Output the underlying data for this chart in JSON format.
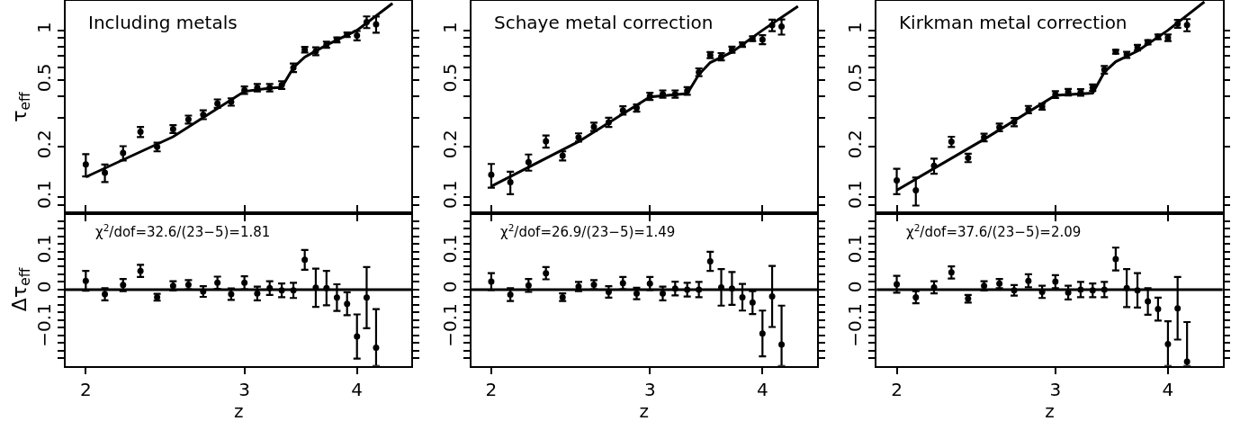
{
  "chart_data": [
    {
      "type": "scatter",
      "ylabel": "τ$_{eff}$",
      "annotations": [
        "Including metals"
      ],
      "log": "xy",
      "marker": "circle",
      "tick_labels": "y",
      "xlim": [
        1.9,
        4.6
      ],
      "xticks": [
        {
          "value": 2,
          "label": null
        },
        {
          "value": 3,
          "label": null
        },
        {
          "value": 4,
          "label": null
        }
      ],
      "ylim": [
        0.08,
        1.5
      ],
      "yticks": [
        {
          "value": 0.09,
          "label": null
        },
        0.1,
        0.2,
        {
          "value": 0.3,
          "label": null
        },
        {
          "value": 0.4,
          "label": null
        },
        0.5,
        {
          "value": 0.6,
          "label": null
        },
        {
          "value": 0.7,
          "label": null
        },
        {
          "value": 0.8,
          "label": null
        },
        {
          "value": 0.9,
          "label": null
        },
        1
      ],
      "x": [
        2.0,
        2.1,
        2.2,
        2.3,
        2.4,
        2.5,
        2.6,
        2.7,
        2.8,
        2.9,
        3.0,
        3.1,
        3.2,
        3.3,
        3.4,
        3.5,
        3.6,
        3.7,
        3.8,
        3.9,
        4.0,
        4.1,
        4.2
      ],
      "series": [
        {
          "color": "#000000",
          "values": [
            0.157,
            0.14,
            0.184,
            0.246,
            0.2,
            0.256,
            0.292,
            0.312,
            0.364,
            0.372,
            0.438,
            0.453,
            0.453,
            0.47,
            0.597,
            0.765,
            0.749,
            0.82,
            0.876,
            0.94,
            0.929,
            1.12,
            1.087
          ],
          "errors": [
            0.024,
            0.017,
            0.018,
            0.017,
            0.012,
            0.014,
            0.016,
            0.019,
            0.021,
            0.019,
            0.022,
            0.023,
            0.023,
            0.025,
            0.035,
            0.03,
            0.04,
            0.035,
            0.03,
            0.03,
            0.06,
            0.09,
            0.12
          ]
        },
        {
          "type": "line",
          "marker": "none",
          "color": "#000000",
          "x": [
            2.0,
            2.5,
            3.0,
            3.2,
            3.3,
            3.4,
            3.5,
            3.7,
            4.0,
            4.38
          ],
          "values": [
            0.132,
            0.23,
            0.43,
            0.45,
            0.455,
            0.597,
            0.69,
            0.815,
            1.0,
            1.45
          ]
        }
      ]
    },
    {
      "type": "scatter",
      "annotations": [
        "Schaye metal correction"
      ],
      "log": "xy",
      "marker": "circle",
      "tick_labels": "y",
      "xlim": [
        1.9,
        4.6
      ],
      "xticks": [
        {
          "value": 2,
          "label": null
        },
        {
          "value": 3,
          "label": null
        },
        {
          "value": 4,
          "label": null
        }
      ],
      "ylim": [
        0.08,
        1.5
      ],
      "yticks": [
        {
          "value": 0.09,
          "label": null
        },
        0.1,
        0.2,
        {
          "value": 0.3,
          "label": null
        },
        {
          "value": 0.4,
          "label": null
        },
        0.5,
        {
          "value": 0.6,
          "label": null
        },
        {
          "value": 0.7,
          "label": null
        },
        {
          "value": 0.8,
          "label": null
        },
        {
          "value": 0.9,
          "label": null
        },
        1
      ],
      "x": [
        2.0,
        2.1,
        2.2,
        2.3,
        2.4,
        2.5,
        2.6,
        2.7,
        2.8,
        2.9,
        3.0,
        3.1,
        3.2,
        3.3,
        3.4,
        3.5,
        3.6,
        3.7,
        3.8,
        3.9,
        4.0,
        4.1,
        4.2
      ],
      "series": [
        {
          "color": "#000000",
          "values": [
            0.136,
            0.123,
            0.162,
            0.216,
            0.177,
            0.228,
            0.264,
            0.281,
            0.331,
            0.342,
            0.402,
            0.415,
            0.415,
            0.433,
            0.561,
            0.71,
            0.695,
            0.765,
            0.82,
            0.891,
            0.879,
            1.072,
            1.051
          ],
          "errors": [
            0.022,
            0.019,
            0.018,
            0.018,
            0.011,
            0.013,
            0.015,
            0.018,
            0.019,
            0.017,
            0.02,
            0.021,
            0.021,
            0.023,
            0.03,
            0.03,
            0.035,
            0.032,
            0.025,
            0.03,
            0.055,
            0.085,
            0.11
          ]
        },
        {
          "type": "line",
          "marker": "none",
          "color": "#000000",
          "x": [
            2.0,
            2.5,
            3.0,
            3.3,
            3.4,
            3.5,
            3.7,
            4.0,
            4.38
          ],
          "values": [
            0.116,
            0.215,
            0.398,
            0.417,
            0.543,
            0.64,
            0.74,
            1.0,
            1.39
          ]
        }
      ]
    },
    {
      "type": "scatter",
      "annotations": [
        "Kirkman metal correction"
      ],
      "log": "xy",
      "marker": "circle",
      "tick_labels": "y",
      "xlim": [
        1.9,
        4.6
      ],
      "xticks": [
        {
          "value": 2,
          "label": null
        },
        {
          "value": 3,
          "label": null
        },
        {
          "value": 4,
          "label": null
        }
      ],
      "ylim": [
        0.08,
        1.5
      ],
      "yticks": [
        {
          "value": 0.09,
          "label": null
        },
        0.1,
        0.2,
        {
          "value": 0.3,
          "label": null
        },
        {
          "value": 0.4,
          "label": null
        },
        0.5,
        {
          "value": 0.6,
          "label": null
        },
        {
          "value": 0.7,
          "label": null
        },
        {
          "value": 0.8,
          "label": null
        },
        {
          "value": 0.9,
          "label": null
        },
        1
      ],
      "x": [
        2.0,
        2.1,
        2.2,
        2.3,
        2.4,
        2.5,
        2.6,
        2.7,
        2.8,
        2.9,
        3.0,
        3.1,
        3.2,
        3.3,
        3.4,
        3.5,
        3.6,
        3.7,
        3.8,
        3.9,
        4.0,
        4.1,
        4.2
      ],
      "series": [
        {
          "color": "#000000",
          "values": [
            0.126,
            0.11,
            0.154,
            0.215,
            0.172,
            0.228,
            0.262,
            0.282,
            0.335,
            0.349,
            0.412,
            0.426,
            0.424,
            0.453,
            0.58,
            0.743,
            0.713,
            0.787,
            0.848,
            0.914,
            0.902,
            1.094,
            1.076
          ],
          "errors": [
            0.022,
            0.021,
            0.016,
            0.015,
            0.01,
            0.012,
            0.014,
            0.016,
            0.017,
            0.015,
            0.019,
            0.019,
            0.019,
            0.02,
            0.03,
            0.02,
            0.03,
            0.03,
            0.025,
            0.03,
            0.04,
            0.06,
            0.09
          ]
        },
        {
          "type": "line",
          "marker": "none",
          "color": "#000000",
          "x": [
            2.0,
            2.5,
            3.0,
            3.3,
            3.4,
            3.5,
            3.7,
            4.0,
            4.39
          ],
          "values": [
            0.11,
            0.222,
            0.407,
            0.42,
            0.561,
            0.648,
            0.75,
            1.0,
            1.48
          ]
        }
      ]
    },
    {
      "type": "scatter",
      "ylabel": "Δτ$_{eff}$",
      "xlabel": "z",
      "annotations": [
        "χ$^{2}$/dof=32.6/(23−5)=1.81"
      ],
      "log": "x",
      "marker": "circle",
      "xlim": [
        1.9,
        4.6
      ],
      "xticks": [
        2,
        3,
        4
      ],
      "ylim": [
        -0.2,
        0.2
      ],
      "yticks": [
        {
          "value": -0.18,
          "label": null
        },
        {
          "value": -0.16,
          "label": null
        },
        {
          "value": -0.14,
          "label": null
        },
        {
          "value": -0.12,
          "label": null
        },
        {
          "value": -0.1,
          "label": "−0.1"
        },
        {
          "value": -0.08,
          "label": null
        },
        {
          "value": -0.06,
          "label": null
        },
        {
          "value": -0.04,
          "label": null
        },
        {
          "value": -0.02,
          "label": null
        },
        0,
        {
          "value": 0.02,
          "label": null
        },
        {
          "value": 0.04,
          "label": null
        },
        {
          "value": 0.06,
          "label": null
        },
        {
          "value": 0.08,
          "label": null
        },
        0.1,
        {
          "value": 0.12,
          "label": null
        },
        {
          "value": 0.14,
          "label": null
        },
        {
          "value": 0.16,
          "label": null
        },
        {
          "value": 0.18,
          "label": null
        }
      ],
      "ref_lines": [
        {
          "axis": "y",
          "value": 0,
          "color": "#000000"
        }
      ],
      "x": [
        2.0,
        2.1,
        2.2,
        2.3,
        2.4,
        2.5,
        2.6,
        2.7,
        2.8,
        2.9,
        3.0,
        3.1,
        3.2,
        3.3,
        3.4,
        3.5,
        3.6,
        3.7,
        3.8,
        3.9,
        4.0,
        4.1,
        4.2
      ],
      "series": [
        {
          "color": "#000000",
          "values": [
            0.023,
            -0.012,
            0.012,
            0.049,
            -0.02,
            0.01,
            0.013,
            -0.005,
            0.018,
            -0.012,
            0.018,
            -0.01,
            0.004,
            -0.002,
            -0.002,
            0.078,
            0.005,
            0.004,
            -0.021,
            -0.037,
            -0.123,
            -0.021,
            -0.152
          ],
          "errors": [
            0.026,
            0.016,
            0.016,
            0.016,
            0.009,
            0.012,
            0.012,
            0.014,
            0.016,
            0.015,
            0.017,
            0.018,
            0.018,
            0.018,
            0.02,
            0.026,
            0.05,
            0.045,
            0.035,
            0.03,
            0.058,
            0.08,
            [
              -0.2,
              -0.051
            ]
          ]
        }
      ]
    },
    {
      "type": "scatter",
      "xlabel": "z",
      "annotations": [
        "χ$^{2}$/dof=26.9/(23−5)=1.49"
      ],
      "log": "x",
      "marker": "circle",
      "xlim": [
        1.9,
        4.6
      ],
      "xticks": [
        2,
        3,
        4
      ],
      "ylim": [
        -0.2,
        0.2
      ],
      "yticks": [
        {
          "value": -0.18,
          "label": null
        },
        {
          "value": -0.16,
          "label": null
        },
        {
          "value": -0.14,
          "label": null
        },
        {
          "value": -0.12,
          "label": null
        },
        {
          "value": -0.1,
          "label": "−0.1"
        },
        {
          "value": -0.08,
          "label": null
        },
        {
          "value": -0.06,
          "label": null
        },
        {
          "value": -0.04,
          "label": null
        },
        {
          "value": -0.02,
          "label": null
        },
        0,
        {
          "value": 0.02,
          "label": null
        },
        {
          "value": 0.04,
          "label": null
        },
        {
          "value": 0.06,
          "label": null
        },
        {
          "value": 0.08,
          "label": null
        },
        0.1,
        {
          "value": 0.12,
          "label": null
        },
        {
          "value": 0.14,
          "label": null
        },
        {
          "value": 0.16,
          "label": null
        },
        {
          "value": 0.18,
          "label": null
        }
      ],
      "ref_lines": [
        {
          "axis": "y",
          "value": 0,
          "color": "#000000"
        }
      ],
      "x": [
        2.0,
        2.1,
        2.2,
        2.3,
        2.4,
        2.5,
        2.6,
        2.7,
        2.8,
        2.9,
        3.0,
        3.1,
        3.2,
        3.3,
        3.4,
        3.5,
        3.6,
        3.7,
        3.8,
        3.9,
        4.0,
        4.1,
        4.2
      ],
      "series": [
        {
          "color": "#000000",
          "values": [
            0.021,
            -0.013,
            0.011,
            0.043,
            -0.02,
            0.008,
            0.013,
            -0.006,
            0.017,
            -0.01,
            0.016,
            -0.01,
            0.003,
            0,
            0,
            0.074,
            0.006,
            0.003,
            -0.02,
            -0.034,
            -0.115,
            -0.018,
            -0.144
          ],
          "errors": [
            0.022,
            0.017,
            0.017,
            0.016,
            0.01,
            0.012,
            0.012,
            0.015,
            0.016,
            0.015,
            0.017,
            0.018,
            0.018,
            0.018,
            0.02,
            0.025,
            0.048,
            0.043,
            0.035,
            0.03,
            0.06,
            0.08,
            [
              -0.2,
              -0.042
            ]
          ]
        }
      ]
    },
    {
      "type": "scatter",
      "xlabel": "z",
      "annotations": [
        "χ$^{2}$/dof=37.6/(23−5)=2.09"
      ],
      "log": "x",
      "marker": "circle",
      "xlim": [
        1.9,
        4.6
      ],
      "xticks": [
        2,
        3,
        4
      ],
      "ylim": [
        -0.2,
        0.2
      ],
      "yticks": [
        {
          "value": -0.18,
          "label": null
        },
        {
          "value": -0.16,
          "label": null
        },
        {
          "value": -0.14,
          "label": null
        },
        {
          "value": -0.12,
          "label": null
        },
        {
          "value": -0.1,
          "label": "−0.1"
        },
        {
          "value": -0.08,
          "label": null
        },
        {
          "value": -0.06,
          "label": null
        },
        {
          "value": -0.04,
          "label": null
        },
        {
          "value": -0.02,
          "label": null
        },
        0,
        {
          "value": 0.02,
          "label": null
        },
        {
          "value": 0.04,
          "label": null
        },
        {
          "value": 0.06,
          "label": null
        },
        {
          "value": 0.08,
          "label": null
        },
        0.1,
        {
          "value": 0.12,
          "label": null
        },
        {
          "value": 0.14,
          "label": null
        },
        {
          "value": 0.16,
          "label": null
        },
        {
          "value": 0.18,
          "label": null
        }
      ],
      "ref_lines": [
        {
          "axis": "y",
          "value": 0,
          "color": "#000000"
        }
      ],
      "x": [
        2.0,
        2.1,
        2.2,
        2.3,
        2.4,
        2.5,
        2.6,
        2.7,
        2.8,
        2.9,
        3.0,
        3.1,
        3.2,
        3.3,
        3.4,
        3.5,
        3.6,
        3.7,
        3.8,
        3.9,
        4.0,
        4.1,
        4.2
      ],
      "series": [
        {
          "color": "#000000",
          "values": [
            0.014,
            -0.02,
            0.006,
            0.045,
            -0.024,
            0.01,
            0.016,
            -0.002,
            0.023,
            -0.006,
            0.021,
            -0.008,
            0,
            -0.002,
            0,
            0.08,
            0.004,
            -0.002,
            -0.031,
            -0.051,
            -0.143,
            -0.049,
            -0.189
          ],
          "errors": [
            0.022,
            0.016,
            0.016,
            0.016,
            0.01,
            0.012,
            0.012,
            0.014,
            0.017,
            0.016,
            0.017,
            0.018,
            0.02,
            0.018,
            0.02,
            0.03,
            0.05,
            0.045,
            0.035,
            0.03,
            [
              -0.2,
              -0.083
            ],
            0.082,
            [
              -0.2,
              -0.085
            ]
          ]
        }
      ]
    }
  ]
}
